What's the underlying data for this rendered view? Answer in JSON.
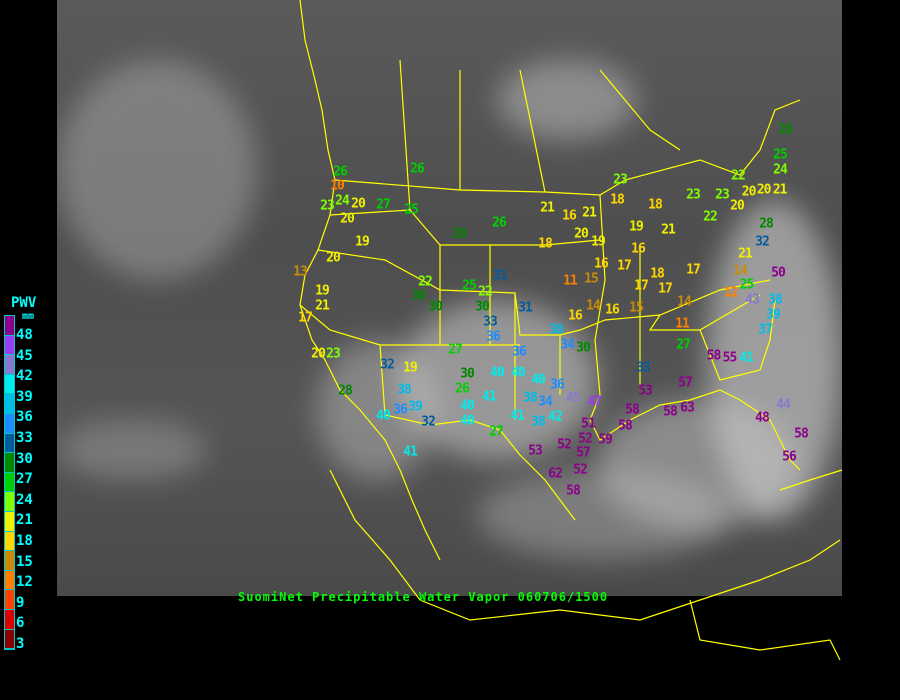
{
  "caption": "SuomiNet Precipitable Water Vapor 060706/1500",
  "legend": {
    "title": "PWV",
    "unit": "mm",
    "ticks": [
      "48",
      "45",
      "42",
      "39",
      "36",
      "33",
      "30",
      "27",
      "24",
      "21",
      "18",
      "15",
      "12",
      "9",
      "6",
      "3"
    ],
    "colors": [
      "#8c008c",
      "#9a3cf0",
      "#8878d0",
      "#00ecec",
      "#00bce8",
      "#1e8cff",
      "#005c9c",
      "#008800",
      "#00d000",
      "#80ff00",
      "#f0f000",
      "#ffd700",
      "#c88c0a",
      "#ff8000",
      "#ff4400",
      "#dc0000",
      "#8c0000"
    ]
  },
  "map": {
    "border_color": "#ffff00",
    "stations": [
      "26",
      "10",
      "24",
      "23",
      "20",
      "20",
      "27",
      "25",
      "26",
      "28",
      "26",
      "19",
      "20",
      "13",
      "19",
      "21",
      "17",
      "22",
      "30",
      "30",
      "25",
      "22",
      "31",
      "30",
      "31",
      "21",
      "16",
      "21",
      "18",
      "20",
      "19",
      "11",
      "15",
      "16",
      "14",
      "16",
      "33",
      "36",
      "20",
      "23",
      "32",
      "19",
      "27",
      "30",
      "26",
      "28",
      "38",
      "36",
      "39",
      "40",
      "32",
      "40",
      "40",
      "36",
      "40",
      "36",
      "41",
      "40",
      "40",
      "41",
      "38",
      "34",
      "42",
      "38",
      "27",
      "41",
      "45",
      "47",
      "53",
      "52",
      "51",
      "52",
      "57",
      "59",
      "52",
      "62",
      "58",
      "23",
      "18",
      "18",
      "19",
      "21",
      "16",
      "17",
      "18",
      "17",
      "17",
      "17",
      "14",
      "16",
      "15",
      "11",
      "27",
      "33",
      "53",
      "57",
      "58",
      "58",
      "63",
      "58",
      "23",
      "23",
      "22",
      "20",
      "20",
      "22",
      "28",
      "25",
      "24",
      "20",
      "21",
      "28",
      "32",
      "21",
      "25",
      "14",
      "12",
      "43",
      "50",
      "38",
      "39",
      "37",
      "58",
      "55",
      "41",
      "48",
      "44",
      "58",
      "56",
      "38",
      "34",
      "30"
    ]
  }
}
